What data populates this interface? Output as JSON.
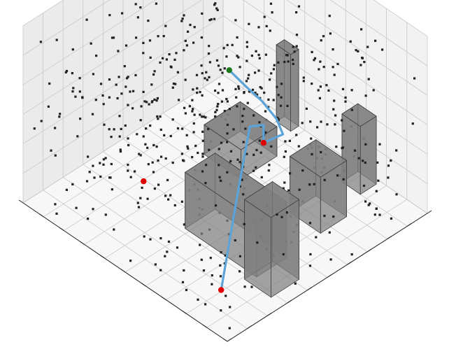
{
  "chart_data": {
    "type": "scatter",
    "title": "",
    "xlabel": "",
    "ylabel": "",
    "zlabel": "",
    "projection": "3d",
    "grid": true,
    "xlim": [
      0,
      10
    ],
    "ylim": [
      0,
      10
    ],
    "zlim": [
      0,
      6
    ],
    "xticks": [
      0,
      1,
      2,
      3,
      4,
      5,
      6,
      7,
      8,
      9,
      10
    ],
    "yticks": [
      0,
      1,
      2,
      3,
      4,
      5,
      6,
      7,
      8,
      9,
      10
    ],
    "colors": {
      "path": "#5ba3d9",
      "obstacle_fill": "#808080",
      "obstacle_edge": "#404040",
      "point": "#222222",
      "waypoint": "#e00000",
      "goal": "#1a7a1a",
      "pane_back": "#ebebeb",
      "pane_side": "#f2f2f2",
      "floor": "#f7f7f7",
      "grid": "#c8c8c8"
    },
    "obstacles": [
      {
        "x": [
          0.6,
          1.9
        ],
        "y": [
          2.8,
          4.2
        ],
        "z": [
          0,
          2.7
        ]
      },
      {
        "x": [
          1.7,
          5.2
        ],
        "y": [
          3.2,
          4.7
        ],
        "z": [
          0,
          1.9
        ]
      },
      {
        "x": [
          1.8,
          3.3
        ],
        "y": [
          6.5,
          7.8
        ],
        "z": [
          0,
          1.9
        ]
      },
      {
        "x": [
          5.7,
          7.5
        ],
        "y": [
          6.5,
          8.3
        ],
        "z": [
          0,
          1.0
        ]
      },
      {
        "x": [
          2.3,
          3.2
        ],
        "y": [
          9.0,
          9.8
        ],
        "z": [
          0,
          2.3
        ]
      },
      {
        "x": [
          6.3,
          7.0
        ],
        "y": [
          9.6,
          10.0
        ],
        "z": [
          0,
          2.6
        ]
      }
    ],
    "path": {
      "name": "",
      "x": [
        0.3,
        1.9,
        3.5,
        4.1,
        4.1,
        4.9,
        5.6,
        6.6,
        7.6,
        8.6,
        9.7
      ],
      "y": [
        0.0,
        2.5,
        4.7,
        6.0,
        6.0,
        7.4,
        8.5,
        9.2,
        9.5,
        9.7,
        10.0
      ],
      "z": [
        1.6,
        3.2,
        3.6,
        2.8,
        2.2,
        1.4,
        0.7,
        0.45,
        0.45,
        0.4,
        0.3
      ]
    },
    "markers": [
      {
        "x": 0.3,
        "y": 0.0,
        "z": 1.6,
        "color": "#e00000"
      },
      {
        "x": 4.1,
        "y": 0.0,
        "z": 3.5,
        "color": "#e00000"
      },
      {
        "x": 4.1,
        "y": 6.0,
        "z": 2.2,
        "color": "#e00000"
      },
      {
        "x": 9.7,
        "y": 10.0,
        "z": 0.3,
        "color": "#1a7a1a"
      }
    ],
    "cloud": {
      "count": 640,
      "distribution": "uniform",
      "x": [
        0,
        10
      ],
      "y": [
        0,
        10
      ],
      "z": [
        0,
        6
      ]
    }
  }
}
